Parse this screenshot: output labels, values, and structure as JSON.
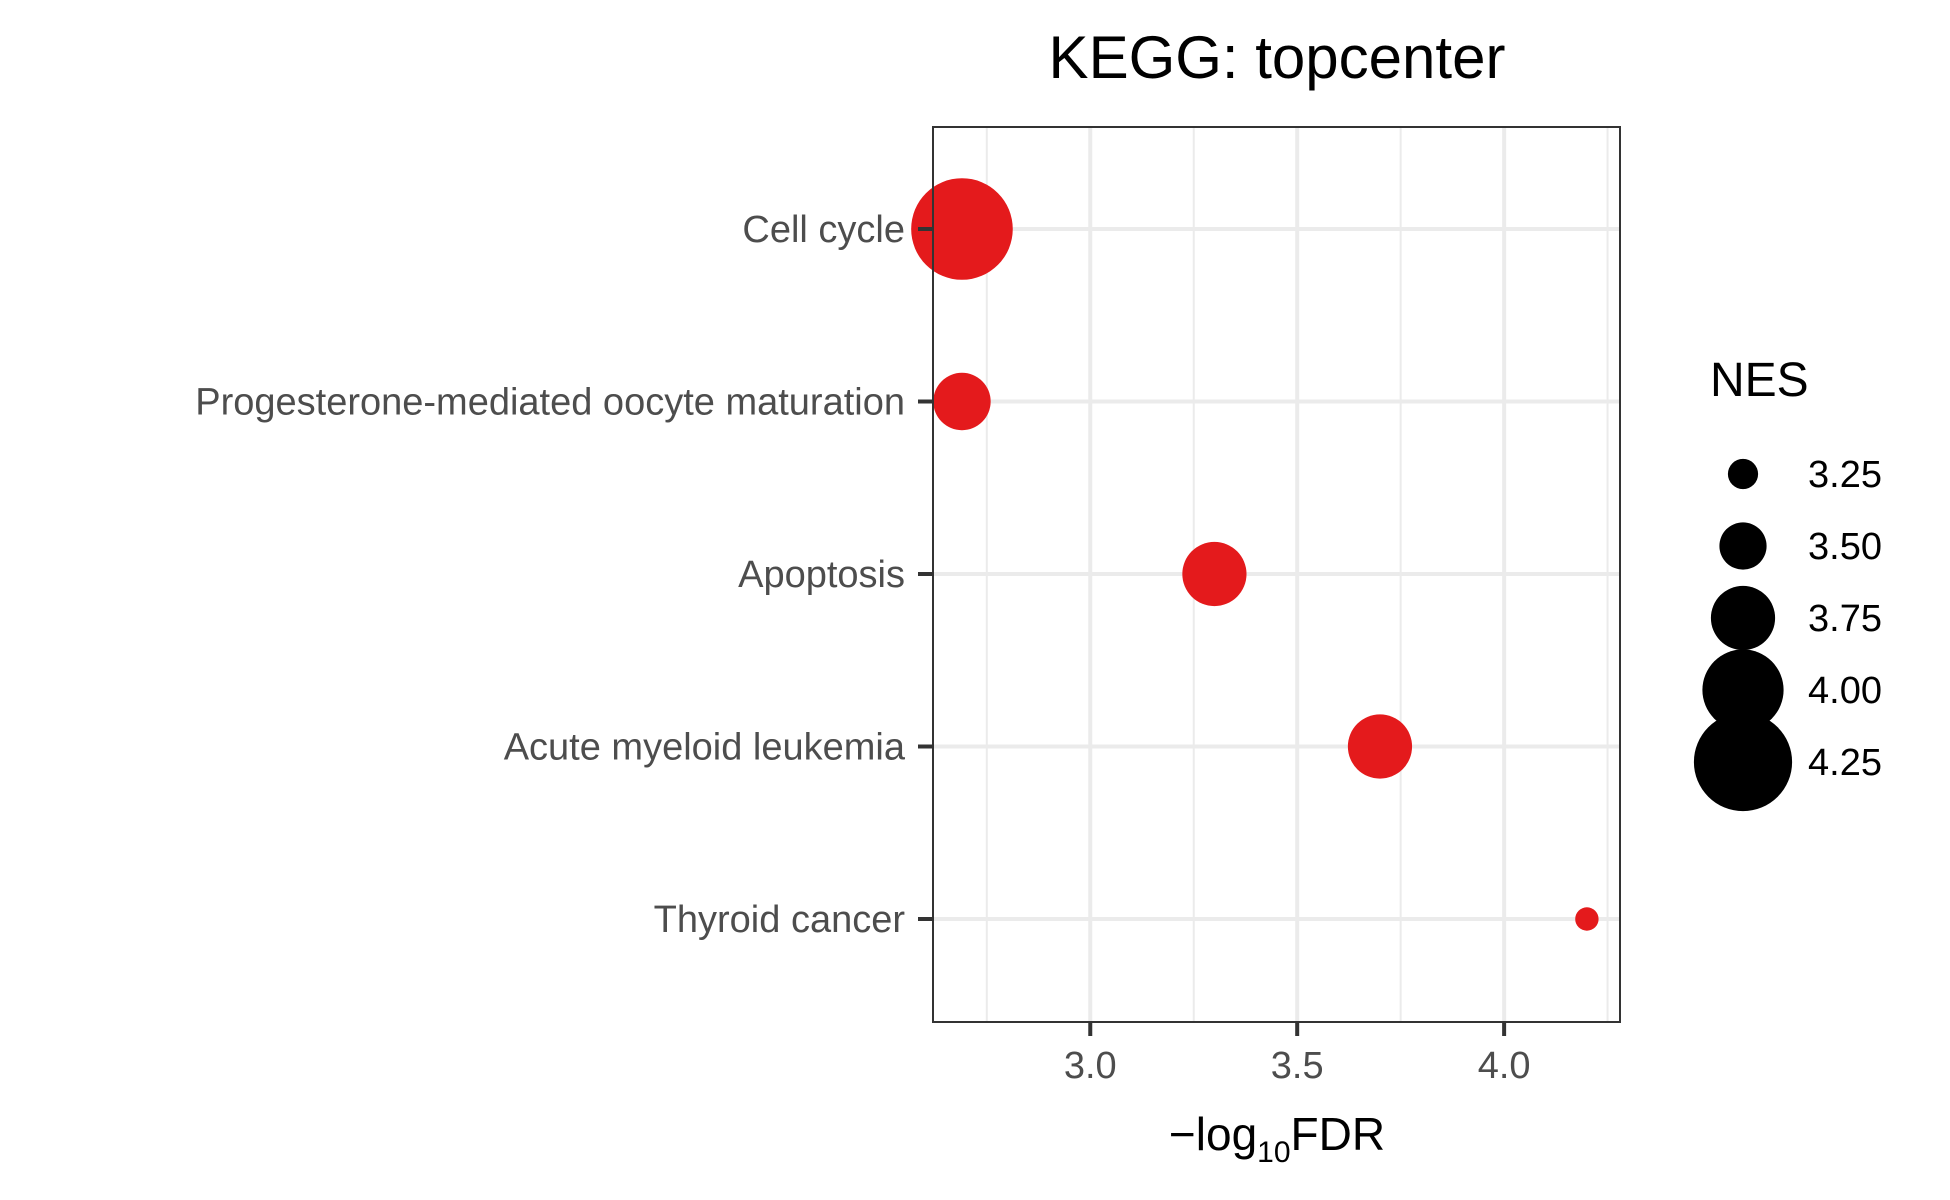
{
  "chart_data": {
    "type": "scatter",
    "title": "KEGG: topcenter",
    "xlabel": {
      "prefix": "−log",
      "subscript": "10",
      "suffix": "FDR"
    },
    "ylabel": "",
    "xlim": [
      2.62,
      4.28
    ],
    "x_ticks": [
      "3.0",
      "3.5",
      "4.0"
    ],
    "categories": [
      "Cell cycle",
      "Progesterone-mediated oocyte maturation",
      "Apoptosis",
      "Acute myeloid leukemia",
      "Thyroid cancer"
    ],
    "points": [
      {
        "category": "Cell cycle",
        "x": 2.69,
        "nes": 4.3
      },
      {
        "category": "Progesterone-mediated oocyte maturation",
        "x": 2.69,
        "nes": 3.65
      },
      {
        "category": "Apoptosis",
        "x": 3.3,
        "nes": 3.75
      },
      {
        "category": "Acute myeloid leukemia",
        "x": 3.7,
        "nes": 3.75
      },
      {
        "category": "Thyroid cancer",
        "x": 4.2,
        "nes": 3.15
      }
    ],
    "point_color": "#e41a1c",
    "grid": true,
    "legend": {
      "title": "NES",
      "position": "right",
      "entries": [
        "3.25",
        "3.50",
        "3.75",
        "4.00",
        "4.25"
      ],
      "values": [
        3.25,
        3.5,
        3.75,
        4.0,
        4.25
      ]
    }
  }
}
